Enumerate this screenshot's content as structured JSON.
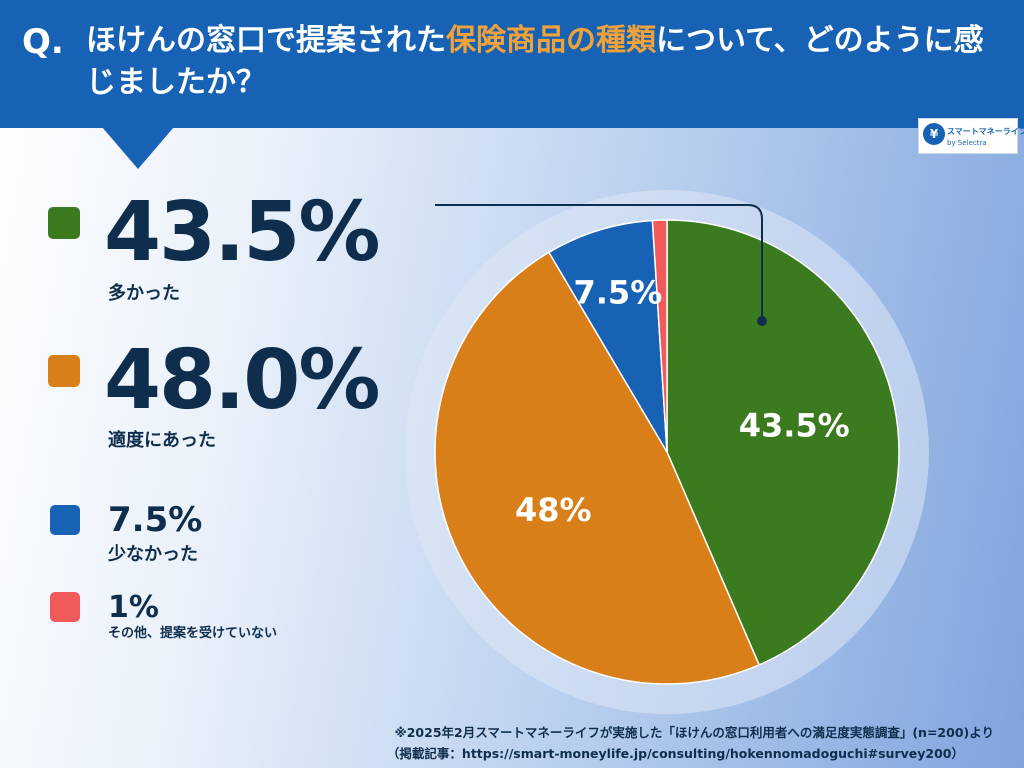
{
  "question": {
    "q_mark": "Q.",
    "text_before": "ほけんの窓口で提案された",
    "text_highlight": "保険商品の種類",
    "text_after": "について、どのように感じましたか？"
  },
  "logo": {
    "name": "スマートマネーライフ",
    "sub": "by Selectra"
  },
  "legend": [
    {
      "pct": "43.5%",
      "label": "多かった"
    },
    {
      "pct": "48.0%",
      "label": "適度にあった"
    },
    {
      "pct": "7.5%",
      "label": "少なかった"
    },
    {
      "pct": "1%",
      "label": "その他、提案を受けていない"
    }
  ],
  "colors": {
    "green": "#3b7a1f",
    "orange": "#d97f1a",
    "blue": "#1762b5",
    "red": "#f05a5a",
    "header": "#1762b5",
    "highlight": "#f0a23a",
    "text": "#0f2e4d"
  },
  "chart_data": {
    "type": "pie",
    "title": "ほけんの窓口で提案された保険商品の種類について、どのように感じましたか？",
    "slices": [
      {
        "name": "多かった",
        "value": 43.5,
        "label": "43.5%",
        "color": "#3b7a1f"
      },
      {
        "name": "適度にあった",
        "value": 48.0,
        "label": "48%",
        "color": "#d97f1a"
      },
      {
        "name": "少なかった",
        "value": 7.5,
        "label": "7.5%",
        "color": "#1762b5"
      },
      {
        "name": "その他、提案を受けていない",
        "value": 1.0,
        "label": "",
        "color": "#f05a5a"
      }
    ],
    "start": "top",
    "direction": "clockwise"
  },
  "footer": {
    "line1": "※2025年2月スマートマネーライフが実施した「ほけんの窓口利用者への満足度実態調査」(n=200)より",
    "line2": "（掲載記事：https://smart-moneylife.jp/consulting/hokennomadoguchi#survey200）"
  }
}
